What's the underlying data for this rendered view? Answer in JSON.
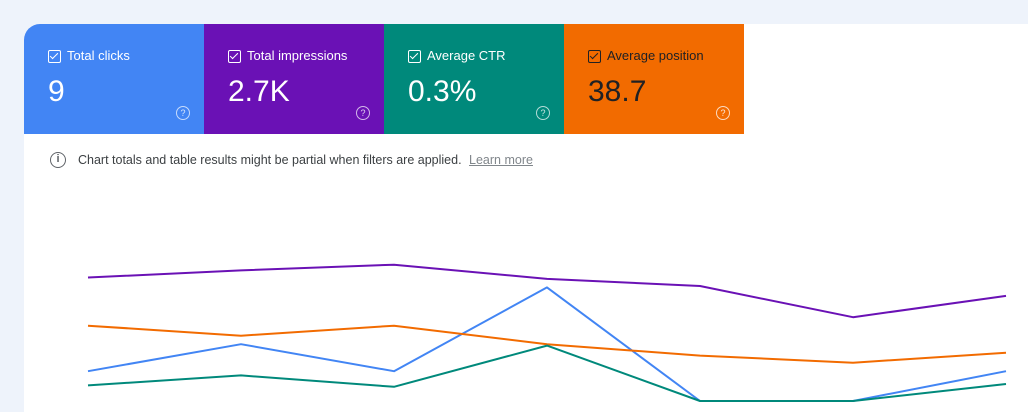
{
  "metrics": [
    {
      "label": "Total clicks",
      "value": "9",
      "color": "#4285f4",
      "text_color": "light"
    },
    {
      "label": "Total impressions",
      "value": "2.7K",
      "color": "#6a11b5",
      "text_color": "light"
    },
    {
      "label": "Average CTR",
      "value": "0.3%",
      "color": "#00897b",
      "text_color": "light"
    },
    {
      "label": "Average position",
      "value": "38.7",
      "color": "#f26b00",
      "text_color": "dark"
    }
  ],
  "notice": {
    "text": "Chart totals and table results might be partial when filters are applied.",
    "link": "Learn more"
  },
  "chart_data": {
    "type": "line",
    "x": [
      1,
      2,
      3,
      4,
      5,
      6,
      7
    ],
    "series": [
      {
        "metric": "impressions",
        "color": "#6a11b5",
        "values": [
          0.87,
          0.92,
          0.96,
          0.86,
          0.81,
          0.59,
          0.74
        ]
      },
      {
        "metric": "clicks",
        "color": "#4285f4",
        "values": [
          0.21,
          0.4,
          0.21,
          0.8,
          0.0,
          0.0,
          0.21
        ]
      },
      {
        "metric": "position",
        "color": "#f26b00",
        "values": [
          0.53,
          0.46,
          0.53,
          0.4,
          0.32,
          0.27,
          0.34
        ]
      },
      {
        "metric": "ctr",
        "color": "#00897b",
        "values": [
          0.11,
          0.18,
          0.1,
          0.39,
          0.0,
          0.0,
          0.12
        ]
      }
    ],
    "ylim": [
      0,
      1
    ],
    "grid": false,
    "legend": "none"
  }
}
